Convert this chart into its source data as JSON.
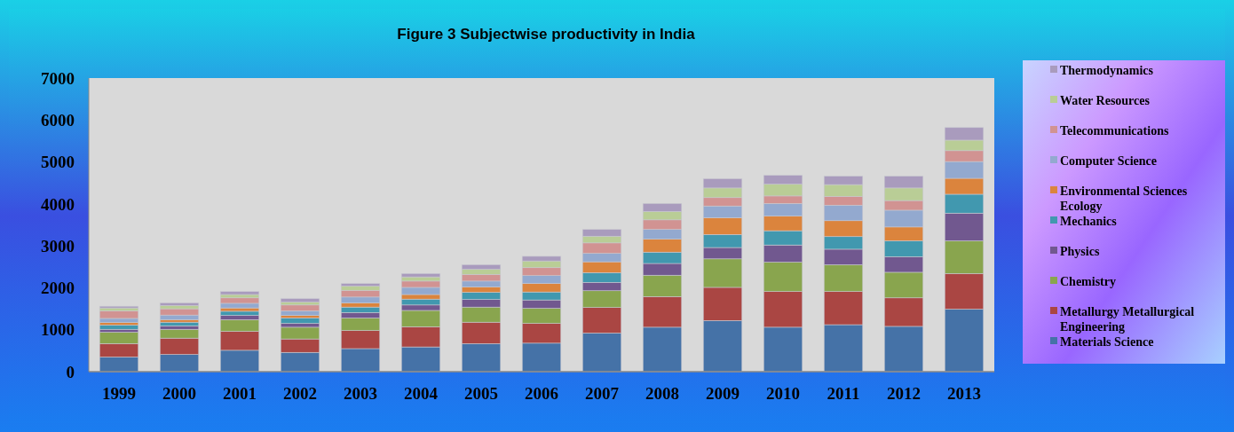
{
  "chart_data": {
    "type": "bar",
    "title": "Figure 3 Subjectwise  productivity in India",
    "stacked": true,
    "legend": "right",
    "grid": false,
    "categories": [
      "1999",
      "2000",
      "2001",
      "2002",
      "2003",
      "2004",
      "2005",
      "2006",
      "2007",
      "2008",
      "2009",
      "2010",
      "2011",
      "2012",
      "2013"
    ],
    "ylim": [
      0,
      7000
    ],
    "yticks": [
      0,
      1000,
      2000,
      3000,
      4000,
      5000,
      6000,
      7000
    ],
    "series": [
      {
        "name": "Materials Science",
        "color": "#4572a7",
        "values": [
          350,
          410,
          510,
          460,
          550,
          590,
          670,
          680,
          920,
          1060,
          1220,
          1060,
          1120,
          1080,
          1490
        ]
      },
      {
        "name": "Metallurgy Metallurgical Engineering",
        "color": "#aa4643",
        "values": [
          320,
          390,
          450,
          320,
          430,
          480,
          510,
          470,
          610,
          730,
          790,
          850,
          790,
          680,
          850
        ]
      },
      {
        "name": "Chemistry",
        "color": "#89a54e",
        "values": [
          270,
          210,
          280,
          280,
          300,
          390,
          360,
          360,
          400,
          510,
          680,
          700,
          640,
          610,
          780
        ]
      },
      {
        "name": "Physics",
        "color": "#71588f",
        "values": [
          70,
          80,
          100,
          90,
          130,
          130,
          180,
          200,
          200,
          280,
          270,
          410,
          370,
          370,
          660
        ]
      },
      {
        "name": "Mechanics",
        "color": "#4198af",
        "values": [
          100,
          90,
          100,
          130,
          130,
          140,
          170,
          190,
          230,
          270,
          310,
          340,
          300,
          380,
          450
        ]
      },
      {
        "name": "Environmental Sciences Ecology",
        "color": "#db843d",
        "values": [
          60,
          60,
          80,
          60,
          100,
          110,
          130,
          200,
          260,
          310,
          400,
          350,
          380,
          330,
          380
        ]
      },
      {
        "name": "Computer Science",
        "color": "#93a9cf",
        "values": [
          100,
          110,
          110,
          110,
          140,
          170,
          140,
          190,
          200,
          230,
          280,
          300,
          370,
          400,
          400
        ]
      },
      {
        "name": "Telecommunications",
        "color": "#d19392",
        "values": [
          180,
          150,
          130,
          140,
          160,
          150,
          160,
          190,
          250,
          230,
          200,
          180,
          210,
          230,
          260
        ]
      },
      {
        "name": "Water Resources",
        "color": "#b9cd96",
        "values": [
          70,
          80,
          80,
          70,
          100,
          100,
          120,
          160,
          160,
          200,
          230,
          280,
          280,
          300,
          250
        ]
      },
      {
        "name": "Thermodynamics",
        "color": "#a99bbd",
        "values": [
          40,
          60,
          70,
          80,
          60,
          80,
          110,
          110,
          160,
          190,
          220,
          210,
          200,
          280,
          300
        ]
      }
    ]
  }
}
